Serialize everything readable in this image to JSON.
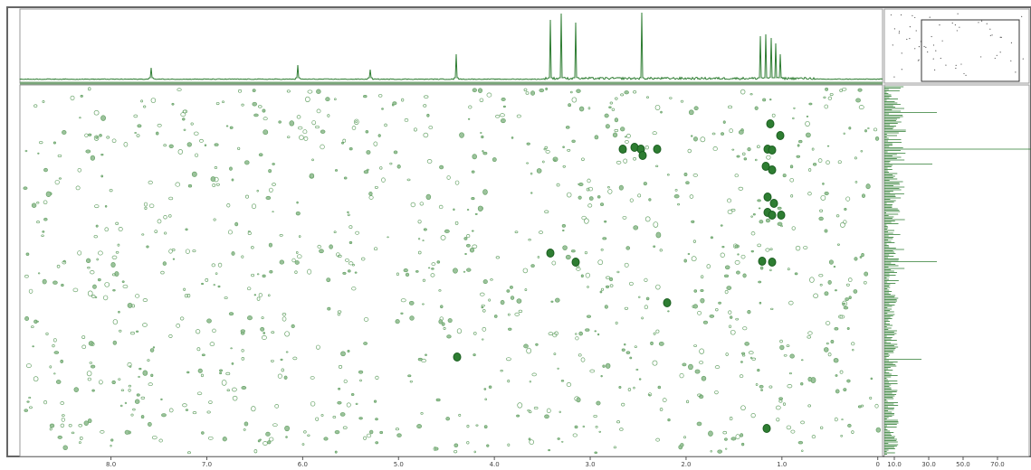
{
  "x_axis": {
    "range": [
      8.95,
      -0.05
    ],
    "ticks": [
      {
        "value": 8,
        "label": "8.0"
      },
      {
        "value": 7,
        "label": "7.0"
      },
      {
        "value": 6,
        "label": "6.0"
      },
      {
        "value": 5,
        "label": "5.0"
      },
      {
        "value": 4,
        "label": "4.0"
      },
      {
        "value": 3,
        "label": "3.0"
      },
      {
        "value": 2,
        "label": "2.0"
      },
      {
        "value": 1,
        "label": "1.0"
      },
      0
    ]
  },
  "projection_axis": {
    "range": [
      4.2,
      89.5
    ],
    "ticks": [
      {
        "value": 10,
        "label": "10.0"
      },
      {
        "value": 30,
        "label": "30.0"
      },
      {
        "value": 50,
        "label": "50.0"
      },
      {
        "value": 70,
        "label": "70.0"
      }
    ]
  }
}
